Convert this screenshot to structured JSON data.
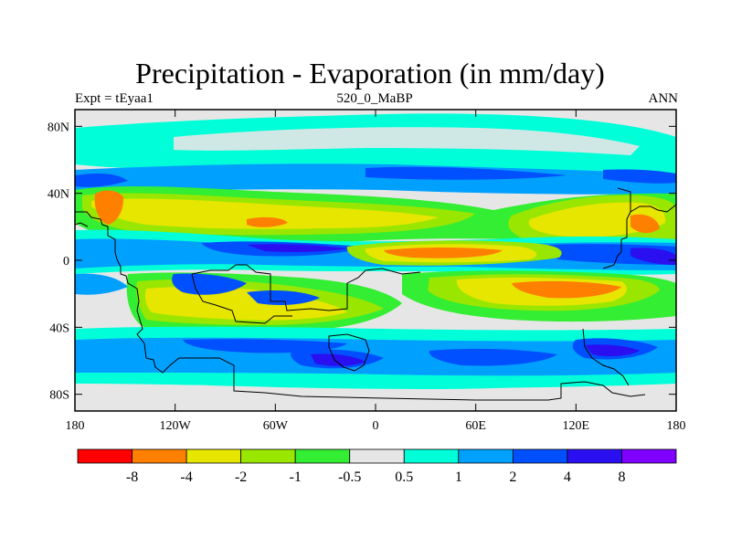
{
  "title": "Precipitation - Evaporation (in mm/day)",
  "subtitle_left": "Expt = tEyaa1",
  "subtitle_center": "520_0_MaBP",
  "subtitle_right": "ANN",
  "map": {
    "x_ticks": [
      {
        "lon": -180,
        "label": "180"
      },
      {
        "lon": -120,
        "label": "120W"
      },
      {
        "lon": -60,
        "label": "60W"
      },
      {
        "lon": 0,
        "label": "0"
      },
      {
        "lon": 60,
        "label": "60E"
      },
      {
        "lon": 120,
        "label": "120E"
      },
      {
        "lon": 180,
        "label": "180"
      }
    ],
    "y_ticks": [
      {
        "lat": 80,
        "label": "80N"
      },
      {
        "lat": 40,
        "label": "40N"
      },
      {
        "lat": 0,
        "label": "0"
      },
      {
        "lat": -40,
        "label": "40S"
      },
      {
        "lat": -80,
        "label": "80S"
      }
    ],
    "lon_range": [
      -180,
      180
    ],
    "lat_range": [
      -90,
      90
    ]
  },
  "colorbar": {
    "colors": [
      "#ff0000",
      "#ff7f00",
      "#e6e600",
      "#99e600",
      "#33ee33",
      "#e6e6e6",
      "#00ffd9",
      "#00a0ff",
      "#0050ff",
      "#2a0ff0",
      "#7f00ff"
    ],
    "labels": [
      "-8",
      "-4",
      "-2",
      "-1",
      "-0.5",
      "0.5",
      "1",
      "2",
      "4",
      "8"
    ]
  }
}
